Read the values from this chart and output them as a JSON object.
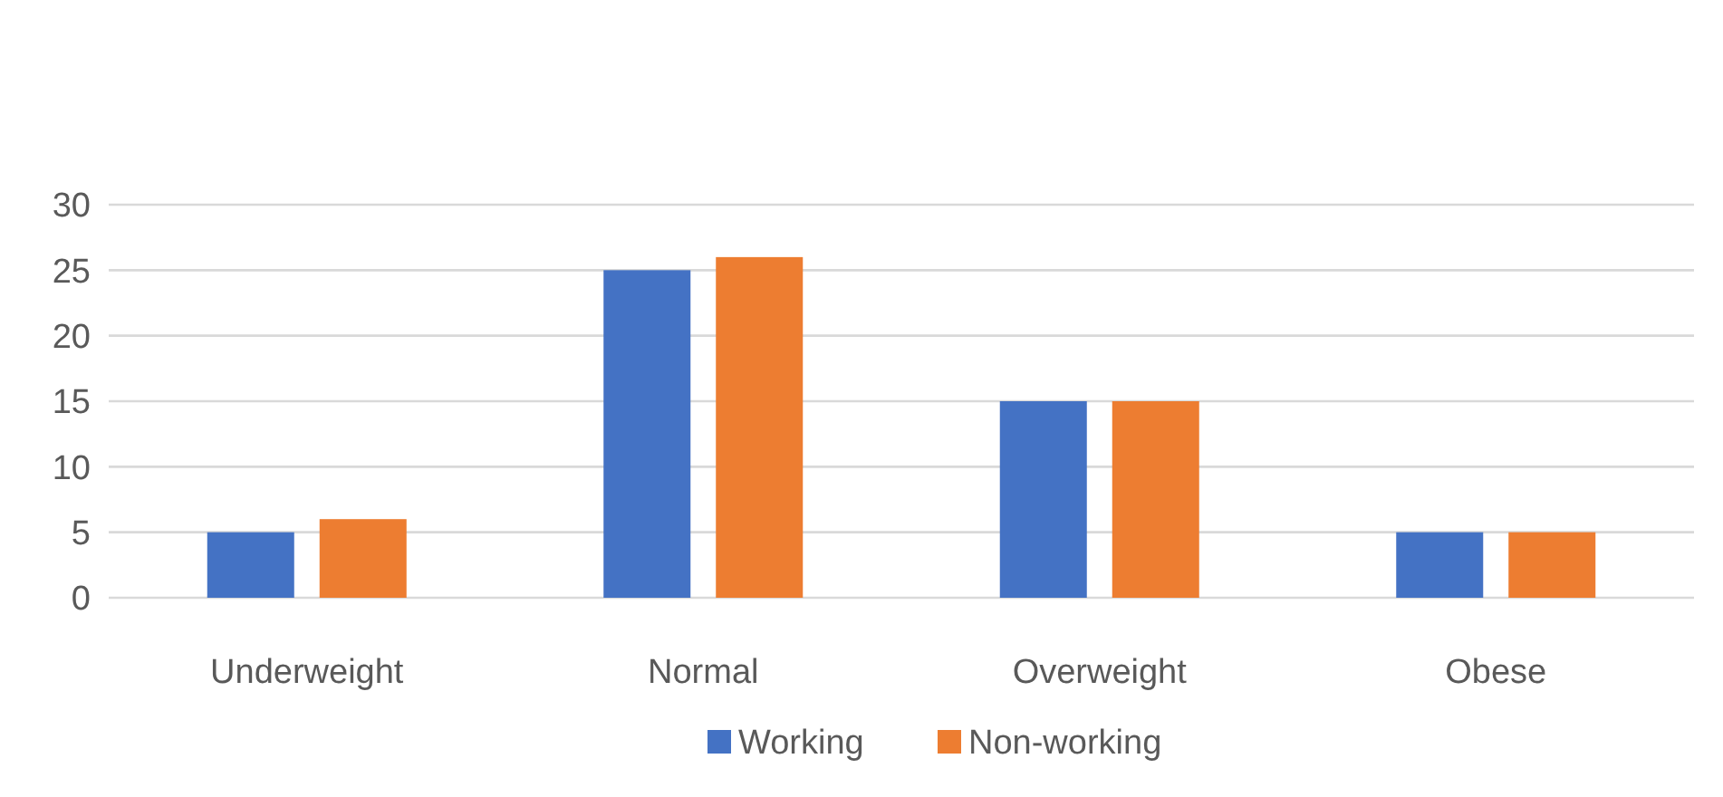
{
  "chart_data": {
    "type": "bar",
    "categories": [
      "Underweight",
      "Normal",
      "Overweight",
      "Obese"
    ],
    "series": [
      {
        "name": "Working",
        "color": "#4472c4",
        "values": [
          5,
          25,
          15,
          5
        ]
      },
      {
        "name": "Non-working",
        "color": "#ed7d31",
        "values": [
          6,
          26,
          15,
          5
        ]
      }
    ],
    "ylim": [
      0,
      30
    ],
    "yticks": [
      0,
      5,
      10,
      15,
      20,
      25,
      30
    ],
    "grid": "y",
    "legend": "bottom"
  }
}
